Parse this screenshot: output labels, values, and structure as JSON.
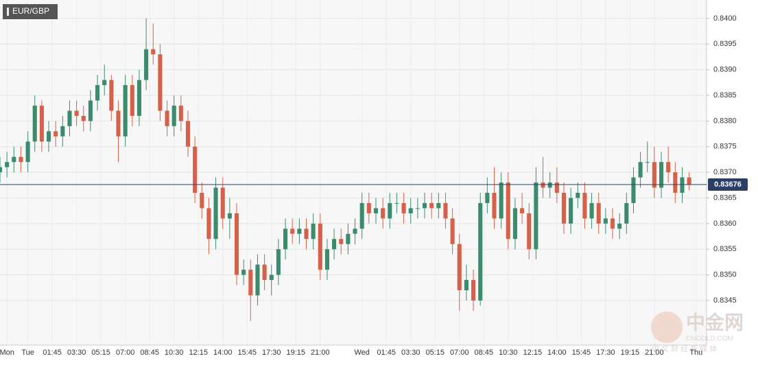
{
  "chart_data": {
    "type": "candlestick",
    "title": "EUR/GBP",
    "up_color": "#3b8b6c",
    "down_color": "#d6614a",
    "grid": true,
    "last_price": 0.83676,
    "last_price_color": "#2b3f66",
    "watermark": {
      "brand": "中金网",
      "site": "CNGOLD.COM",
      "slogan": "中 文 财 经 新 媒 体"
    },
    "xlim": [
      0,
      203
    ],
    "xticks": [
      {
        "value": 2,
        "label": "Mon"
      },
      {
        "value": 8,
        "label": "Tue"
      },
      {
        "value": 15,
        "label": "01:45"
      },
      {
        "value": 22,
        "label": "03:30"
      },
      {
        "value": 29,
        "label": "05:15"
      },
      {
        "value": 36,
        "label": "07:00"
      },
      {
        "value": 43,
        "label": "08:45"
      },
      {
        "value": 50,
        "label": "10:30"
      },
      {
        "value": 57,
        "label": "12:15"
      },
      {
        "value": 64,
        "label": "14:00"
      },
      {
        "value": 71,
        "label": "15:45"
      },
      {
        "value": 78,
        "label": "17:30"
      },
      {
        "value": 85,
        "label": "19:15"
      },
      {
        "value": 92,
        "label": "21:00"
      },
      {
        "value": 104,
        "label": "Wed"
      },
      {
        "value": 111,
        "label": "01:45"
      },
      {
        "value": 118,
        "label": "03:30"
      },
      {
        "value": 125,
        "label": "05:15"
      },
      {
        "value": 132,
        "label": "07:00"
      },
      {
        "value": 139,
        "label": "08:45"
      },
      {
        "value": 146,
        "label": "10:30"
      },
      {
        "value": 153,
        "label": "12:15"
      },
      {
        "value": 160,
        "label": "14:00"
      },
      {
        "value": 167,
        "label": "15:45"
      },
      {
        "value": 174,
        "label": "17:30"
      },
      {
        "value": 181,
        "label": "19:15"
      },
      {
        "value": 188,
        "label": "21:00"
      },
      {
        "value": 200,
        "label": "Thu"
      }
    ],
    "ylim": [
      0.83367,
      0.84036
    ],
    "yticks": [
      0.8345,
      {
        "value": 0.835,
        "label": "0.8350"
      },
      0.8355,
      {
        "value": 0.836,
        "label": "0.8360"
      },
      0.8365,
      {
        "value": 0.837,
        "label": "0.8370"
      },
      0.8375,
      {
        "value": 0.838,
        "label": "0.8380"
      },
      0.8385,
      {
        "value": 0.839,
        "label": "0.8390"
      },
      0.8395,
      {
        "value": 0.84,
        "label": "0.8400"
      }
    ],
    "x": [
      0,
      2,
      4,
      6,
      8,
      10,
      12,
      14,
      16,
      18,
      20,
      22,
      24,
      26,
      28,
      30,
      32,
      34,
      36,
      38,
      40,
      42,
      44,
      46,
      48,
      50,
      52,
      54,
      56,
      58,
      60,
      62,
      64,
      66,
      68,
      70,
      72,
      74,
      76,
      78,
      80,
      82,
      84,
      86,
      88,
      90,
      92,
      94,
      96,
      98,
      100,
      102,
      104,
      106,
      108,
      110,
      112,
      114,
      116,
      118,
      120,
      122,
      124,
      126,
      128,
      130,
      132,
      134,
      136,
      138,
      140,
      142,
      144,
      146,
      148,
      150,
      152,
      154,
      156,
      158,
      160,
      162,
      164,
      166,
      168,
      170,
      172,
      174,
      176,
      178,
      180,
      182,
      184,
      186,
      188,
      190,
      192,
      194,
      196,
      198
    ],
    "open": [
      0.837,
      0.8371,
      0.8372,
      0.8373,
      0.8372,
      0.8376,
      0.8383,
      0.8376,
      0.8378,
      0.8377,
      0.8379,
      0.8382,
      0.8381,
      0.838,
      0.8384,
      0.8387,
      0.8388,
      0.8382,
      0.8377,
      0.8387,
      0.8381,
      0.8388,
      0.8394,
      0.8393,
      0.8382,
      0.8379,
      0.8383,
      0.838,
      0.8375,
      0.8366,
      0.8363,
      0.8357,
      0.8367,
      0.8361,
      0.8362,
      0.835,
      0.8351,
      0.8346,
      0.8352,
      0.8349,
      0.835,
      0.8355,
      0.8359,
      0.8358,
      0.8359,
      0.8357,
      0.836,
      0.8351,
      0.8355,
      0.8357,
      0.8356,
      0.8358,
      0.8359,
      0.8364,
      0.8362,
      0.8363,
      0.8361,
      0.8364,
      0.8364,
      0.8362,
      0.8363,
      0.8363,
      0.8364,
      0.8363,
      0.8364,
      0.8361,
      0.8356,
      0.8347,
      0.8349,
      0.8345,
      0.8364,
      0.8366,
      0.8361,
      0.8368,
      0.8357,
      0.8363,
      0.8362,
      0.8355,
      0.8368,
      0.8367,
      0.8368,
      0.8366,
      0.836,
      0.8365,
      0.8366,
      0.8361,
      0.8364,
      0.836,
      0.8361,
      0.8359,
      0.836,
      0.8364,
      0.8369,
      0.8372,
      0.8372,
      0.8367,
      0.8372,
      0.837,
      0.8366,
      0.8369
    ],
    "high": [
      0.8373,
      0.8374,
      0.8375,
      0.8375,
      0.8378,
      0.8385,
      0.8384,
      0.838,
      0.838,
      0.8381,
      0.8384,
      0.8384,
      0.8383,
      0.8386,
      0.8389,
      0.8391,
      0.8389,
      0.8384,
      0.8389,
      0.8389,
      0.839,
      0.84,
      0.8399,
      0.8395,
      0.8384,
      0.8385,
      0.8385,
      0.8382,
      0.8377,
      0.8368,
      0.8365,
      0.8369,
      0.8369,
      0.8365,
      0.8364,
      0.8353,
      0.8353,
      0.8354,
      0.8354,
      0.8352,
      0.8357,
      0.8361,
      0.8361,
      0.8361,
      0.8361,
      0.8362,
      0.8362,
      0.8357,
      0.8359,
      0.8359,
      0.836,
      0.8361,
      0.8366,
      0.8366,
      0.8365,
      0.8365,
      0.8366,
      0.8366,
      0.8366,
      0.8365,
      0.8365,
      0.8366,
      0.8366,
      0.8366,
      0.8366,
      0.8363,
      0.8358,
      0.8352,
      0.8351,
      0.8366,
      0.8369,
      0.8371,
      0.837,
      0.837,
      0.8365,
      0.8366,
      0.8364,
      0.8371,
      0.8373,
      0.837,
      0.8371,
      0.8368,
      0.8367,
      0.8368,
      0.8368,
      0.8366,
      0.8366,
      0.8363,
      0.8363,
      0.8362,
      0.8366,
      0.8371,
      0.8374,
      0.8376,
      0.8375,
      0.8374,
      0.8375,
      0.8372,
      0.8371,
      0.837
    ],
    "low": [
      0.8368,
      0.8369,
      0.837,
      0.837,
      0.837,
      0.8374,
      0.8374,
      0.8374,
      0.8375,
      0.8375,
      0.8377,
      0.8379,
      0.8378,
      0.8378,
      0.8382,
      0.8385,
      0.838,
      0.8372,
      0.8375,
      0.8379,
      0.8379,
      0.8386,
      0.8391,
      0.838,
      0.8377,
      0.8377,
      0.8378,
      0.8373,
      0.8364,
      0.8361,
      0.8354,
      0.8355,
      0.8359,
      0.8357,
      0.8348,
      0.8348,
      0.8341,
      0.8344,
      0.8347,
      0.8346,
      0.8348,
      0.8353,
      0.8356,
      0.8356,
      0.8355,
      0.8355,
      0.8349,
      0.8349,
      0.8353,
      0.8354,
      0.8354,
      0.8356,
      0.8357,
      0.836,
      0.836,
      0.8359,
      0.8359,
      0.8362,
      0.836,
      0.836,
      0.8361,
      0.8361,
      0.8361,
      0.8361,
      0.8359,
      0.8354,
      0.8343,
      0.8345,
      0.8343,
      0.8344,
      0.8362,
      0.8359,
      0.8359,
      0.8355,
      0.8355,
      0.836,
      0.8353,
      0.8353,
      0.8365,
      0.8365,
      0.8364,
      0.8358,
      0.8358,
      0.8363,
      0.8359,
      0.8359,
      0.8358,
      0.8358,
      0.8357,
      0.8357,
      0.8358,
      0.8362,
      0.8367,
      0.837,
      0.8365,
      0.8365,
      0.8368,
      0.8364,
      0.8364,
      0.83665
    ],
    "close": [
      0.8371,
      0.8372,
      0.8373,
      0.8372,
      0.8376,
      0.8383,
      0.8376,
      0.8378,
      0.8377,
      0.8379,
      0.8382,
      0.8381,
      0.838,
      0.8384,
      0.8387,
      0.8388,
      0.8382,
      0.8377,
      0.8387,
      0.8381,
      0.8388,
      0.8394,
      0.8393,
      0.8382,
      0.8379,
      0.8383,
      0.838,
      0.8375,
      0.8366,
      0.8363,
      0.8357,
      0.8367,
      0.8361,
      0.8362,
      0.835,
      0.8351,
      0.8346,
      0.8352,
      0.8349,
      0.835,
      0.8355,
      0.8359,
      0.8358,
      0.8359,
      0.8357,
      0.836,
      0.8351,
      0.8355,
      0.8357,
      0.8356,
      0.8358,
      0.8359,
      0.8364,
      0.8362,
      0.8363,
      0.8361,
      0.8364,
      0.8364,
      0.8362,
      0.8363,
      0.8363,
      0.8364,
      0.8363,
      0.8364,
      0.8361,
      0.8356,
      0.8347,
      0.8349,
      0.8345,
      0.8364,
      0.8366,
      0.8361,
      0.8368,
      0.8357,
      0.8363,
      0.8362,
      0.8355,
      0.8368,
      0.8367,
      0.8368,
      0.8366,
      0.836,
      0.8365,
      0.8366,
      0.8361,
      0.8364,
      0.836,
      0.8361,
      0.8359,
      0.836,
      0.8364,
      0.8369,
      0.8372,
      0.8372,
      0.8367,
      0.8372,
      0.837,
      0.8366,
      0.8369,
      0.83676
    ]
  }
}
